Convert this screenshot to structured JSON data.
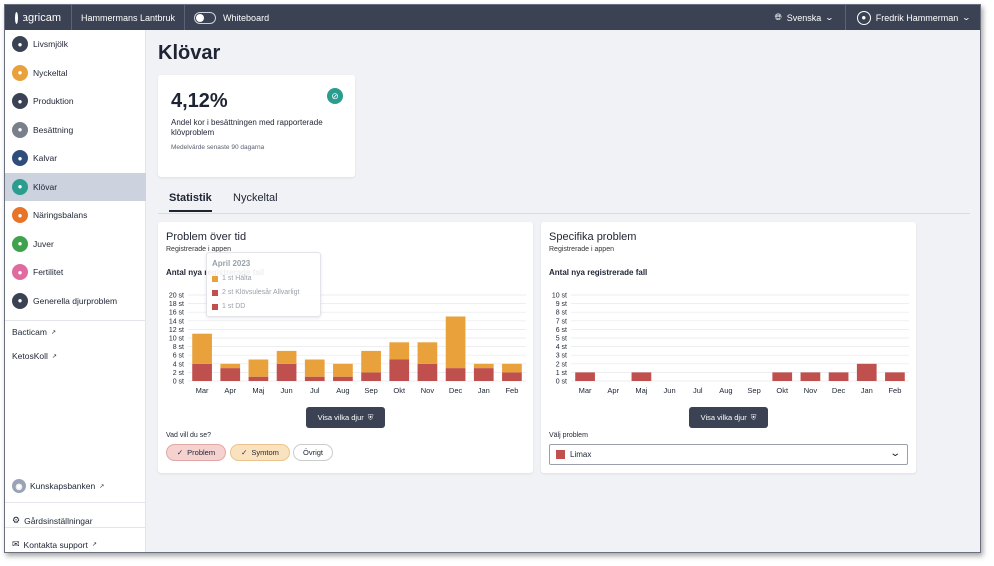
{
  "topbar": {
    "brand": "agricam",
    "farm": "Hammermans Lantbruk",
    "whiteboard_label": "Whiteboard",
    "language": "Svenska",
    "user_name": "Fredrik Hammerman"
  },
  "sidebar": {
    "items": [
      {
        "label": "Livsmjölk",
        "icon": "lifecycle-icon",
        "color": "#3a4254"
      },
      {
        "label": "Nyckeltal",
        "icon": "keyfigures-icon",
        "color": "#e9a13b"
      },
      {
        "label": "Produktion",
        "icon": "production-icon",
        "color": "#3a4254"
      },
      {
        "label": "Besättning",
        "icon": "herd-icon",
        "color": "#7a7f8c"
      },
      {
        "label": "Kalvar",
        "icon": "calf-icon",
        "color": "#2f4d7a"
      },
      {
        "label": "Klövar",
        "icon": "hoof-icon",
        "color": "#2a9d8f"
      },
      {
        "label": "Näringsbalans",
        "icon": "nutrition-icon",
        "color": "#e8742a"
      },
      {
        "label": "Juver",
        "icon": "udder-icon",
        "color": "#3fa34d"
      },
      {
        "label": "Fertilitet",
        "icon": "fertility-icon",
        "color": "#e06c9f"
      },
      {
        "label": "Generella djurproblem",
        "icon": "general-problems-icon",
        "color": "#3a4254"
      }
    ],
    "links": [
      "Bacticam",
      "KetosKoll"
    ],
    "knowledge": "Kunskapsbanken",
    "settings": "Gårdsinställningar",
    "support": "Kontakta support"
  },
  "page": {
    "title": "Klövar",
    "kpi_value": "4,12%",
    "kpi_desc": "Andel kor i besättningen med rapporterade klövproblem",
    "kpi_note": "Medelvärde senaste 90 dagarna",
    "tabs": [
      "Statistik",
      "Nyckeltal"
    ]
  },
  "card_left": {
    "title": "Problem över tid",
    "subtitle": "Registrerade i appen",
    "heading": "Antal nya registrerade fall",
    "button": "Visa vilka djur",
    "question": "Vad vill du se?",
    "chips": [
      "Problem",
      "Symtom",
      "Övrigt"
    ],
    "tooltip": {
      "title": "April 2023",
      "rows": [
        "1 st Hälta",
        "2 st Klövsulesår Allvarligt",
        "1 st DD"
      ]
    }
  },
  "card_right": {
    "title": "Specifika problem",
    "subtitle": "Registrerade i appen",
    "heading": "Antal nya registrerade fall",
    "button": "Visa vilka djur",
    "select_label": "Välj problem",
    "select_value": "Limax"
  },
  "chart_data": [
    {
      "type": "bar",
      "stacked": true,
      "categories": [
        "Mar",
        "Apr",
        "Maj",
        "Jun",
        "Jul",
        "Aug",
        "Sep",
        "Okt",
        "Nov",
        "Dec",
        "Jan",
        "Feb"
      ],
      "series": [
        {
          "color": "#c0504d",
          "values": [
            4,
            3,
            1,
            4,
            1,
            1,
            2,
            5,
            4,
            3,
            3,
            2
          ]
        },
        {
          "color": "#e9a13b",
          "values": [
            7,
            1,
            4,
            3,
            4,
            3,
            5,
            4,
            5,
            12,
            1,
            2
          ]
        }
      ],
      "yticks": [
        "0 st",
        "2 st",
        "4 st",
        "6 st",
        "8 st",
        "10 st",
        "12 st",
        "14 st",
        "16 st",
        "18 st",
        "20 st"
      ],
      "ylim": [
        0,
        20
      ]
    },
    {
      "type": "bar",
      "categories": [
        "Mar",
        "Apr",
        "Maj",
        "Jun",
        "Jul",
        "Aug",
        "Sep",
        "Okt",
        "Nov",
        "Dec",
        "Jan",
        "Feb"
      ],
      "series": [
        {
          "color": "#c0504d",
          "values": [
            1,
            0,
            1,
            0,
            0,
            0,
            0,
            1,
            1,
            1,
            2,
            1
          ]
        }
      ],
      "yticks": [
        "0 st",
        "1 st",
        "2 st",
        "3 st",
        "4 st",
        "5 st",
        "6 st",
        "7 st",
        "8 st",
        "9 st",
        "10 st"
      ],
      "ylim": [
        0,
        10
      ]
    }
  ]
}
